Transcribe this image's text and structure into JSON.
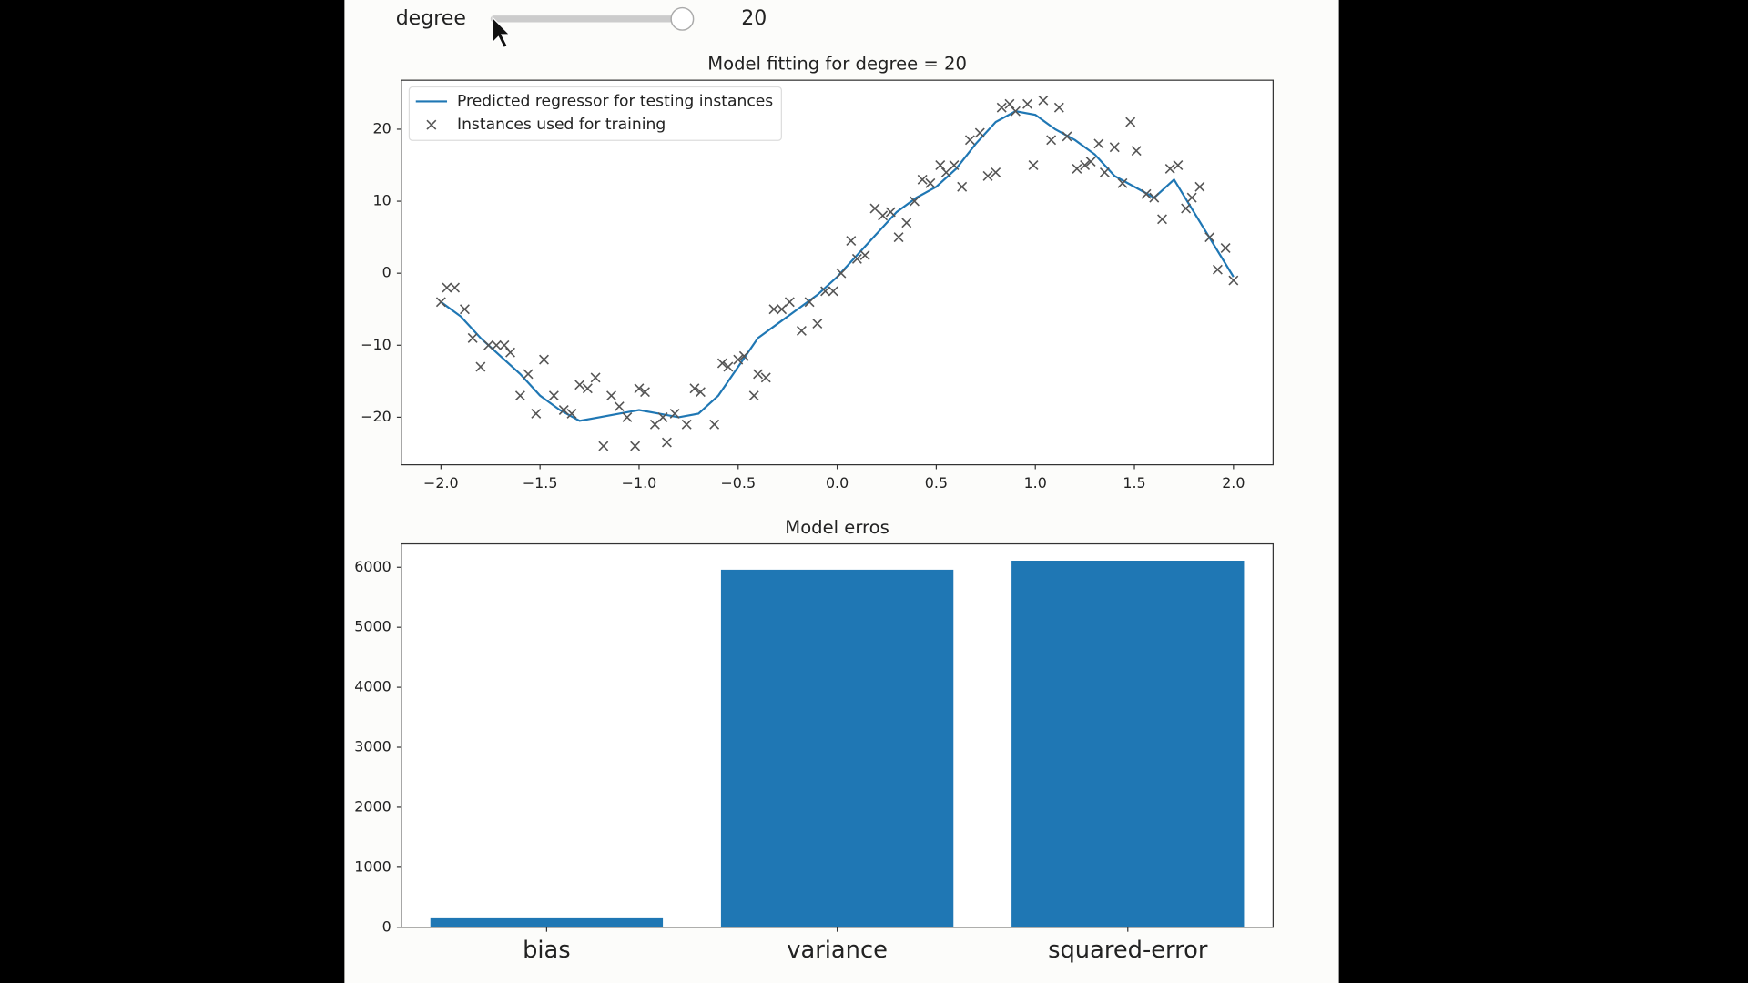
{
  "widget": {
    "label": "degree",
    "value": "20"
  },
  "chart_data": [
    {
      "type": "line",
      "title": "Model fitting for degree = 20",
      "legend": "upper left",
      "grid": false,
      "xlim": [
        -2.2,
        2.2
      ],
      "ylim": [
        -26.6,
        26.8
      ],
      "xticks": [
        {
          "value": -2,
          "label": "−2.0"
        },
        {
          "value": -1.5,
          "label": "−1.5"
        },
        {
          "value": -1,
          "label": "−1.0"
        },
        {
          "value": -0.5,
          "label": "−0.5"
        },
        {
          "value": 0,
          "label": "0.0"
        },
        0.5,
        {
          "value": 1,
          "label": "1.0"
        },
        1.5,
        {
          "value": 2,
          "label": "2.0"
        }
      ],
      "yticks": [
        {
          "value": -20,
          "label": "−20"
        },
        {
          "value": -10,
          "label": "−10"
        },
        0,
        10,
        20
      ],
      "series": [
        {
          "name": "Predicted regressor for testing instances",
          "type": "line",
          "color": "#1f77b4",
          "x": [
            -2.0,
            -1.9,
            -1.8,
            -1.7,
            -1.6,
            -1.5,
            -1.4,
            -1.3,
            -1.2,
            -1.1,
            -1.0,
            -0.9,
            -0.8,
            -0.7,
            -0.6,
            -0.5,
            -0.4,
            -0.3,
            -0.2,
            -0.1,
            0.0,
            0.1,
            0.2,
            0.3,
            0.4,
            0.5,
            0.6,
            0.7,
            0.8,
            0.9,
            1.0,
            1.1,
            1.2,
            1.3,
            1.4,
            1.5,
            1.6,
            1.7,
            1.8,
            1.9,
            2.0
          ],
          "values": [
            -4,
            -6,
            -9,
            -11.5,
            -14,
            -17,
            -19,
            -20.5,
            -20,
            -19.5,
            -19,
            -19.5,
            -20,
            -19.5,
            -17,
            -13,
            -9,
            -7,
            -5,
            -3,
            -0.5,
            2.5,
            5.5,
            8.5,
            10.5,
            12,
            14.5,
            18,
            21,
            22.5,
            22,
            20,
            18.5,
            16.5,
            13.5,
            12,
            10.5,
            13,
            8.5,
            4,
            -0.5
          ]
        },
        {
          "name": "Instances used for training",
          "type": "scatter",
          "color": "#555555",
          "x": [
            -2.0,
            -1.97,
            -1.93,
            -1.88,
            -1.84,
            -1.8,
            -1.76,
            -1.72,
            -1.68,
            -1.65,
            -1.6,
            -1.56,
            -1.52,
            -1.48,
            -1.43,
            -1.38,
            -1.34,
            -1.3,
            -1.26,
            -1.22,
            -1.18,
            -1.14,
            -1.1,
            -1.06,
            -1.02,
            -1.0,
            -0.97,
            -0.92,
            -0.88,
            -0.86,
            -0.82,
            -0.76,
            -0.72,
            -0.69,
            -0.62,
            -0.58,
            -0.55,
            -0.5,
            -0.47,
            -0.42,
            -0.4,
            -0.36,
            -0.32,
            -0.28,
            -0.24,
            -0.18,
            -0.14,
            -0.1,
            -0.06,
            -0.02,
            0.02,
            0.07,
            0.1,
            0.14,
            0.19,
            0.23,
            0.27,
            0.31,
            0.35,
            0.39,
            0.43,
            0.47,
            0.52,
            0.55,
            0.59,
            0.63,
            0.67,
            0.72,
            0.76,
            0.8,
            0.83,
            0.87,
            0.9,
            0.96,
            0.99,
            1.04,
            1.08,
            1.12,
            1.16,
            1.21,
            1.25,
            1.28,
            1.32,
            1.35,
            1.4,
            1.44,
            1.48,
            1.51,
            1.56,
            1.6,
            1.64,
            1.68,
            1.72,
            1.76,
            1.79,
            1.83,
            1.88,
            1.92,
            1.96,
            2.0
          ],
          "values": [
            -4,
            -2,
            -2,
            -5,
            -9,
            -13,
            -10,
            -10,
            -10,
            -11,
            -17,
            -14,
            -19.5,
            -12,
            -17,
            -19,
            -19.5,
            -15.5,
            -16,
            -14.5,
            -24,
            -17,
            -18.5,
            -20,
            -24,
            -16,
            -16.5,
            -21,
            -20,
            -23.5,
            -19.5,
            -21,
            -16,
            -16.5,
            -21,
            -12.5,
            -13,
            -12,
            -11.5,
            -17,
            -14,
            -14.5,
            -5,
            -5,
            -4,
            -8,
            -4,
            -7,
            -2.5,
            -2.5,
            0,
            4.5,
            2,
            2.5,
            9,
            8,
            8.5,
            5,
            7,
            10,
            13,
            12.5,
            15,
            14,
            15,
            12,
            18.5,
            19.5,
            13.5,
            14,
            23,
            23.5,
            22.5,
            23.5,
            15,
            24,
            18.5,
            23,
            19,
            14.5,
            15,
            15.5,
            18,
            14,
            17.5,
            12.5,
            21,
            17,
            11,
            10.5,
            7.5,
            14.5,
            15,
            9,
            10.5,
            12,
            5,
            0.5,
            3.5,
            -1
          ]
        }
      ]
    },
    {
      "type": "bar",
      "title": "Model erros",
      "color": "#1f77b4",
      "categories": [
        "bias",
        "variance",
        "squared-error"
      ],
      "values": [
        150,
        5960,
        6110
      ],
      "ylim": [
        0,
        6390
      ],
      "yticks": [
        0,
        1000,
        2000,
        3000,
        4000,
        5000,
        6000
      ]
    }
  ]
}
